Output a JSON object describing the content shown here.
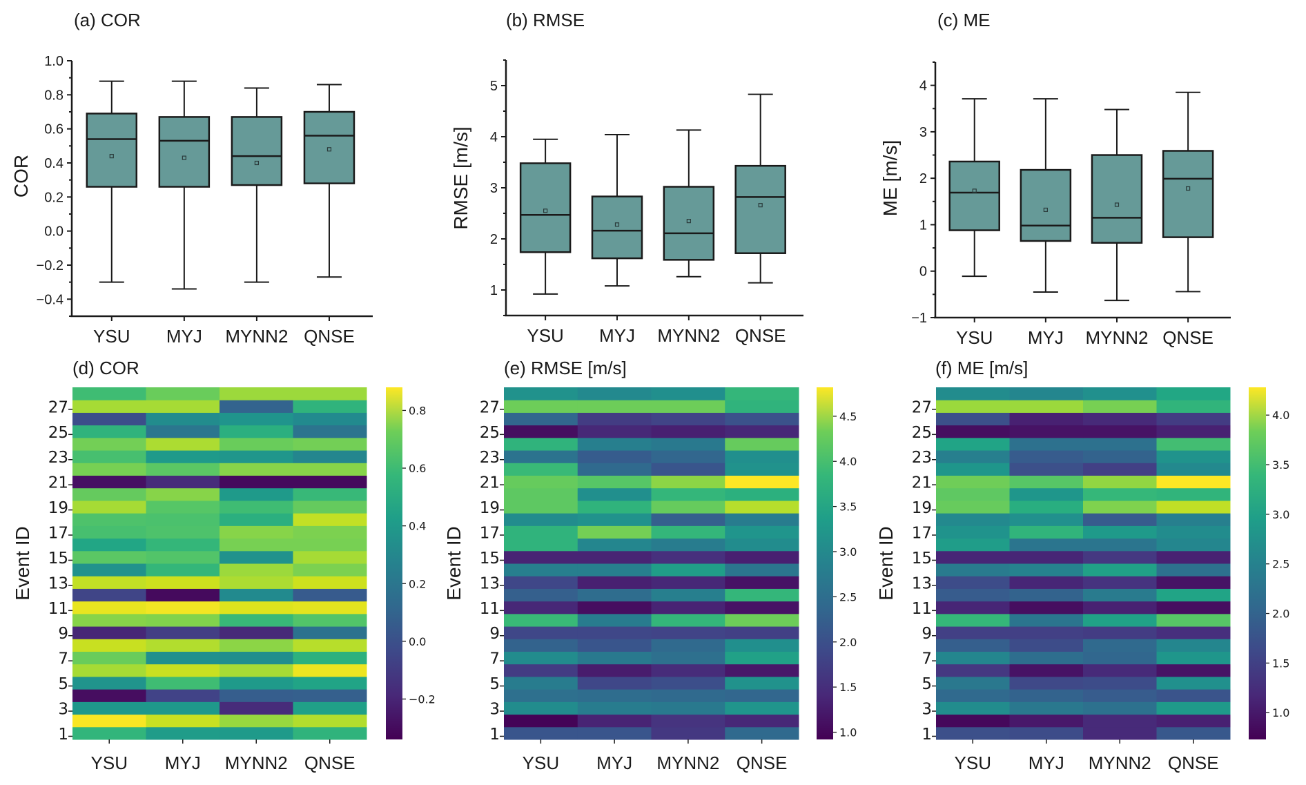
{
  "chart_data": [
    {
      "panel": "a",
      "type": "box",
      "title": "(a) COR",
      "xlabel": "",
      "ylabel": "COR",
      "categories": [
        "YSU",
        "MYJ",
        "MYNN2",
        "QNSE"
      ],
      "ylim": [
        -0.5,
        1.0
      ],
      "yticks": [
        1.0,
        0.8,
        0.6,
        0.4,
        0.2,
        0.0,
        -0.2,
        -0.4
      ],
      "ytick_labels": [
        "1.0",
        "0.8",
        "0.6",
        "0.4",
        "0.2",
        "0.0",
        "−0.2",
        "−0.4"
      ],
      "boxes": [
        {
          "whisker_low": -0.3,
          "q1": 0.26,
          "median": 0.54,
          "q3": 0.69,
          "whisker_high": 0.88,
          "mean": 0.44
        },
        {
          "whisker_low": -0.34,
          "q1": 0.26,
          "median": 0.53,
          "q3": 0.67,
          "whisker_high": 0.88,
          "mean": 0.43
        },
        {
          "whisker_low": -0.3,
          "q1": 0.27,
          "median": 0.44,
          "q3": 0.67,
          "whisker_high": 0.84,
          "mean": 0.4
        },
        {
          "whisker_low": -0.27,
          "q1": 0.28,
          "median": 0.56,
          "q3": 0.7,
          "whisker_high": 0.86,
          "mean": 0.48
        }
      ]
    },
    {
      "panel": "b",
      "type": "box",
      "title": "(b) RMSE",
      "xlabel": "",
      "ylabel": "RMSE [m/s]",
      "categories": [
        "YSU",
        "MYJ",
        "MYNN2",
        "QNSE"
      ],
      "ylim": [
        0.5,
        5.5
      ],
      "yticks": [
        5,
        4,
        3,
        2,
        1
      ],
      "ytick_labels": [
        "5",
        "4",
        "3",
        "2",
        "1"
      ],
      "boxes": [
        {
          "whisker_low": 0.92,
          "q1": 1.74,
          "median": 2.47,
          "q3": 3.48,
          "whisker_high": 3.95,
          "mean": 2.55
        },
        {
          "whisker_low": 1.08,
          "q1": 1.62,
          "median": 2.16,
          "q3": 2.83,
          "whisker_high": 4.04,
          "mean": 2.28
        },
        {
          "whisker_low": 1.26,
          "q1": 1.59,
          "median": 2.11,
          "q3": 3.02,
          "whisker_high": 4.13,
          "mean": 2.35
        },
        {
          "whisker_low": 1.14,
          "q1": 1.72,
          "median": 2.82,
          "q3": 3.43,
          "whisker_high": 4.83,
          "mean": 2.66
        }
      ]
    },
    {
      "panel": "c",
      "type": "box",
      "title": "(c) ME",
      "xlabel": "",
      "ylabel": "ME [m/s]",
      "categories": [
        "YSU",
        "MYJ",
        "MYNN2",
        "QNSE"
      ],
      "ylim": [
        -1,
        4.5
      ],
      "yticks": [
        4,
        3,
        2,
        1,
        0,
        -1
      ],
      "ytick_labels": [
        "4",
        "3",
        "2",
        "1",
        "0",
        "−1"
      ],
      "boxes": [
        {
          "whisker_low": -0.11,
          "q1": 0.88,
          "median": 1.69,
          "q3": 2.36,
          "whisker_high": 3.71,
          "mean": 1.73
        },
        {
          "whisker_low": -0.45,
          "q1": 0.65,
          "median": 0.98,
          "q3": 2.18,
          "whisker_high": 3.71,
          "mean": 1.32
        },
        {
          "whisker_low": -0.63,
          "q1": 0.61,
          "median": 1.15,
          "q3": 2.5,
          "whisker_high": 3.48,
          "mean": 1.43
        },
        {
          "whisker_low": -0.44,
          "q1": 0.73,
          "median": 1.99,
          "q3": 2.59,
          "whisker_high": 3.85,
          "mean": 1.78
        }
      ]
    },
    {
      "panel": "d",
      "type": "heatmap",
      "title": "(d) COR",
      "xlabel": "",
      "ylabel": "Event ID",
      "x_categories": [
        "YSU",
        "MYJ",
        "MYNN2",
        "QNSE"
      ],
      "y_categories": [
        1,
        2,
        3,
        4,
        5,
        6,
        7,
        8,
        9,
        10,
        11,
        12,
        13,
        14,
        15,
        16,
        17,
        18,
        19,
        20,
        21,
        22,
        23,
        24,
        25,
        26,
        27,
        28
      ],
      "ytick_labels": [
        "1",
        "3",
        "5",
        "7",
        "9",
        "11",
        "13",
        "15",
        "17",
        "19",
        "21",
        "23",
        "25",
        "27"
      ],
      "colormap": "viridis",
      "vmin": -0.34,
      "vmax": 0.88,
      "colorbar_ticks": [
        -0.2,
        0.0,
        0.2,
        0.4,
        0.6,
        0.8
      ],
      "colorbar_tick_labels": [
        "−0.2",
        "0.0",
        "0.2",
        "0.4",
        "0.6",
        "0.8"
      ],
      "values": [
        [
          0.46,
          0.33,
          0.32,
          0.45
        ],
        [
          0.87,
          0.78,
          0.69,
          0.74
        ],
        [
          0.31,
          0.31,
          -0.19,
          0.35
        ],
        [
          -0.3,
          -0.1,
          0.02,
          0.03
        ],
        [
          0.29,
          0.5,
          0.32,
          0.37
        ],
        [
          0.72,
          0.78,
          0.72,
          0.85
        ],
        [
          0.6,
          0.27,
          0.26,
          0.44
        ],
        [
          0.78,
          0.74,
          0.67,
          0.75
        ],
        [
          -0.21,
          -0.12,
          -0.2,
          0.12
        ],
        [
          0.66,
          0.65,
          0.48,
          0.55
        ],
        [
          0.84,
          0.86,
          0.82,
          0.83
        ],
        [
          -0.09,
          -0.31,
          0.24,
          0.01
        ],
        [
          0.77,
          0.79,
          0.73,
          0.79
        ],
        [
          0.28,
          0.47,
          0.7,
          0.64
        ],
        [
          0.57,
          0.55,
          0.28,
          0.72
        ],
        [
          0.38,
          0.47,
          0.63,
          0.63
        ],
        [
          0.52,
          0.54,
          0.66,
          0.64
        ],
        [
          0.54,
          0.53,
          0.43,
          0.77
        ],
        [
          0.72,
          0.56,
          0.5,
          0.59
        ],
        [
          0.59,
          0.66,
          0.32,
          0.48
        ],
        [
          -0.29,
          -0.19,
          -0.31,
          -0.31
        ],
        [
          0.63,
          0.57,
          0.66,
          0.66
        ],
        [
          0.52,
          0.32,
          0.3,
          0.22
        ],
        [
          0.62,
          0.73,
          0.6,
          0.62
        ],
        [
          0.45,
          0.14,
          0.43,
          0.13
        ],
        [
          -0.05,
          0.25,
          0.29,
          0.24
        ],
        [
          0.72,
          0.72,
          0.05,
          0.45
        ],
        [
          0.5,
          0.6,
          0.7,
          0.7
        ]
      ]
    },
    {
      "panel": "e",
      "type": "heatmap",
      "title": "(e) RMSE [m/s]",
      "xlabel": "",
      "ylabel": "Event ID",
      "x_categories": [
        "YSU",
        "MYJ",
        "MYNN2",
        "QNSE"
      ],
      "y_categories": [
        1,
        2,
        3,
        4,
        5,
        6,
        7,
        8,
        9,
        10,
        11,
        12,
        13,
        14,
        15,
        16,
        17,
        18,
        19,
        20,
        21,
        22,
        23,
        24,
        25,
        26,
        27,
        28
      ],
      "ytick_labels": [
        "1",
        "3",
        "5",
        "7",
        "9",
        "11",
        "13",
        "15",
        "17",
        "19",
        "21",
        "23",
        "25",
        "27"
      ],
      "colormap": "viridis",
      "vmin": 0.92,
      "vmax": 4.82,
      "colorbar_ticks": [
        1.0,
        1.5,
        2.0,
        2.5,
        3.0,
        3.5,
        4.0,
        4.5
      ],
      "colorbar_tick_labels": [
        "1.0",
        "1.5",
        "2.0",
        "2.5",
        "3.0",
        "3.5",
        "4.0",
        "4.5"
      ],
      "values": [
        [
          1.95,
          1.95,
          1.55,
          2.25
        ],
        [
          0.95,
          1.3,
          1.5,
          1.35
        ],
        [
          2.8,
          2.55,
          2.5,
          2.95
        ],
        [
          2.35,
          2.3,
          2.25,
          2.2
        ],
        [
          2.55,
          1.75,
          1.85,
          2.9
        ],
        [
          1.6,
          1.2,
          1.4,
          1.15
        ],
        [
          2.8,
          2.5,
          2.35,
          3.15
        ],
        [
          2.15,
          1.95,
          2.25,
          2.85
        ],
        [
          1.75,
          1.75,
          1.7,
          1.65
        ],
        [
          3.55,
          2.55,
          3.5,
          3.95
        ],
        [
          1.35,
          1.05,
          1.3,
          1.1
        ],
        [
          2.1,
          2.3,
          2.6,
          3.5
        ],
        [
          1.75,
          1.25,
          1.35,
          1.1
        ],
        [
          2.6,
          2.6,
          3.1,
          2.45
        ],
        [
          1.3,
          1.3,
          1.45,
          1.25
        ],
        [
          3.45,
          2.7,
          2.55,
          2.8
        ],
        [
          3.45,
          4.0,
          3.5,
          2.95
        ],
        [
          2.8,
          2.9,
          2.1,
          2.55
        ],
        [
          3.85,
          3.45,
          3.9,
          4.4
        ],
        [
          3.85,
          2.85,
          3.5,
          3.4
        ],
        [
          3.9,
          3.8,
          4.15,
          4.82
        ],
        [
          3.55,
          2.25,
          1.95,
          2.9
        ],
        [
          2.4,
          2.05,
          2.2,
          2.85
        ],
        [
          3.45,
          2.6,
          2.5,
          3.9
        ],
        [
          1.05,
          1.35,
          1.25,
          1.35
        ],
        [
          2.2,
          1.6,
          1.7,
          1.9
        ],
        [
          3.95,
          3.95,
          3.95,
          3.45
        ],
        [
          2.9,
          2.75,
          2.85,
          3.5
        ]
      ]
    },
    {
      "panel": "f",
      "type": "heatmap",
      "title": "(f) ME [m/s]",
      "xlabel": "",
      "ylabel": "Event ID",
      "x_categories": [
        "YSU",
        "MYJ",
        "MYNN2",
        "QNSE"
      ],
      "y_categories": [
        1,
        2,
        3,
        4,
        5,
        6,
        7,
        8,
        9,
        10,
        11,
        12,
        13,
        14,
        15,
        16,
        17,
        18,
        19,
        20,
        21,
        22,
        23,
        24,
        25,
        26,
        27,
        28
      ],
      "ytick_labels": [
        "1",
        "3",
        "5",
        "7",
        "9",
        "11",
        "13",
        "15",
        "17",
        "19",
        "21",
        "23",
        "25",
        "27"
      ],
      "colormap": "viridis",
      "vmin": 0.73,
      "vmax": 4.28,
      "colorbar_ticks": [
        1.0,
        1.5,
        2.0,
        2.5,
        3.0,
        3.5,
        4.0
      ],
      "colorbar_tick_labels": [
        "1.0",
        "1.5",
        "2.0",
        "2.5",
        "3.0",
        "3.5",
        "4.0"
      ],
      "values": [
        [
          1.6,
          1.55,
          1.15,
          1.7
        ],
        [
          0.8,
          0.95,
          1.15,
          1.05
        ],
        [
          2.45,
          2.15,
          2.05,
          2.65
        ],
        [
          1.95,
          1.85,
          1.75,
          1.65
        ],
        [
          2.15,
          1.5,
          1.55,
          2.5
        ],
        [
          1.3,
          0.9,
          1.15,
          0.9
        ],
        [
          2.35,
          2.0,
          1.9,
          2.6
        ],
        [
          1.8,
          1.55,
          1.95,
          2.35
        ],
        [
          1.4,
          1.4,
          1.35,
          1.2
        ],
        [
          3.1,
          2.1,
          2.75,
          3.35
        ],
        [
          1.1,
          0.85,
          1.05,
          0.85
        ],
        [
          1.75,
          1.85,
          2.2,
          2.8
        ],
        [
          1.55,
          1.1,
          1.25,
          0.9
        ],
        [
          2.2,
          2.3,
          2.75,
          2.05
        ],
        [
          1.1,
          1.1,
          1.3,
          1.05
        ],
        [
          2.7,
          2.1,
          2.1,
          2.35
        ],
        [
          2.55,
          3.05,
          2.65,
          2.45
        ],
        [
          2.4,
          2.5,
          1.75,
          2.25
        ],
        [
          3.45,
          2.95,
          3.6,
          3.95
        ],
        [
          3.4,
          2.6,
          3.1,
          3.05
        ],
        [
          3.5,
          3.35,
          3.7,
          4.28
        ],
        [
          2.6,
          1.6,
          1.4,
          2.4
        ],
        [
          2.25,
          1.75,
          1.85,
          2.55
        ],
        [
          2.8,
          2.05,
          2.05,
          3.2
        ],
        [
          0.85,
          0.9,
          0.9,
          1.05
        ],
        [
          1.6,
          1.05,
          1.15,
          1.35
        ],
        [
          3.75,
          3.75,
          3.55,
          3.05
        ],
        [
          2.45,
          2.35,
          2.5,
          2.85
        ]
      ]
    }
  ],
  "style": {
    "box_fill": "#669a98",
    "box_edge": "#1a1a1a",
    "axis_color": "#1a1a1a"
  }
}
